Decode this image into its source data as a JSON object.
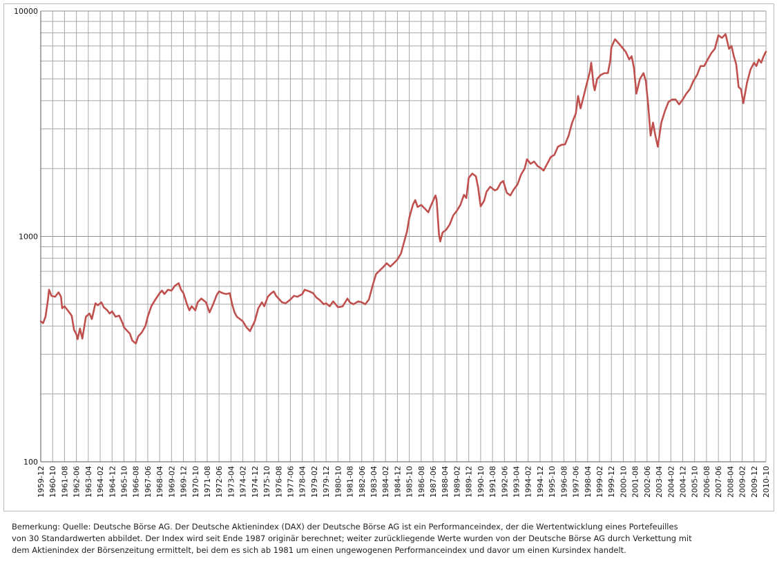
{
  "chart_data": {
    "type": "line",
    "title": "",
    "xlabel": "",
    "ylabel": "",
    "y_scale": "log",
    "ylim": [
      100,
      10000
    ],
    "y_major_ticks": [
      "100",
      "1000",
      "10000"
    ],
    "xlim": [
      "1959-12",
      "2010-10"
    ],
    "grid": true,
    "x_tick_labels": [
      "1959-12",
      "1960-10",
      "1961-08",
      "1962-06",
      "1963-04",
      "1964-02",
      "1964-12",
      "1965-10",
      "1966-08",
      "1967-06",
      "1968-04",
      "1969-02",
      "1969-12",
      "1970-10",
      "1971-08",
      "1972-06",
      "1973-04",
      "1974-02",
      "1974-12",
      "1975-10",
      "1976-08",
      "1977-06",
      "1978-04",
      "1979-02",
      "1979-12",
      "1980-10",
      "1981-08",
      "1982-06",
      "1983-04",
      "1984-02",
      "1984-12",
      "1985-10",
      "1986-08",
      "1987-06",
      "1988-04",
      "1989-02",
      "1989-12",
      "1990-10",
      "1991-08",
      "1992-06",
      "1993-04",
      "1994-02",
      "1994-12",
      "1995-10",
      "1996-08",
      "1997-06",
      "1998-04",
      "1999-02",
      "1999-12",
      "2000-10",
      "2001-08",
      "2002-06",
      "2003-04",
      "2004-02",
      "2004-12",
      "2005-10",
      "2006-08",
      "2007-06",
      "2008-04",
      "2009-02",
      "2009-12",
      "2010-10"
    ],
    "series": [
      {
        "color": "#c0504d",
        "points": [
          [
            "1959-12",
            420
          ],
          [
            "1960-02",
            412
          ],
          [
            "1960-04",
            440
          ],
          [
            "1960-06",
            520
          ],
          [
            "1960-07",
            580
          ],
          [
            "1960-09",
            545
          ],
          [
            "1960-12",
            540
          ],
          [
            "1961-03",
            565
          ],
          [
            "1961-05",
            540
          ],
          [
            "1961-06",
            480
          ],
          [
            "1961-08",
            490
          ],
          [
            "1961-10",
            475
          ],
          [
            "1962-02",
            445
          ],
          [
            "1962-04",
            385
          ],
          [
            "1962-06",
            368
          ],
          [
            "1962-07",
            350
          ],
          [
            "1962-09",
            390
          ],
          [
            "1962-11",
            352
          ],
          [
            "1963-02",
            440
          ],
          [
            "1963-05",
            455
          ],
          [
            "1963-07",
            430
          ],
          [
            "1963-10",
            505
          ],
          [
            "1963-12",
            495
          ],
          [
            "1964-03",
            510
          ],
          [
            "1964-05",
            485
          ],
          [
            "1964-08",
            470
          ],
          [
            "1964-10",
            455
          ],
          [
            "1964-12",
            465
          ],
          [
            "1965-03",
            440
          ],
          [
            "1965-06",
            445
          ],
          [
            "1965-09",
            410
          ],
          [
            "1965-10",
            395
          ],
          [
            "1966-03",
            370
          ],
          [
            "1966-05",
            345
          ],
          [
            "1966-08",
            335
          ],
          [
            "1966-10",
            360
          ],
          [
            "1967-01",
            375
          ],
          [
            "1967-04",
            400
          ],
          [
            "1967-06",
            440
          ],
          [
            "1967-09",
            490
          ],
          [
            "1967-12",
            520
          ],
          [
            "1968-02",
            540
          ],
          [
            "1968-04",
            560
          ],
          [
            "1968-06",
            575
          ],
          [
            "1968-08",
            555
          ],
          [
            "1968-11",
            580
          ],
          [
            "1969-02",
            575
          ],
          [
            "1969-05",
            605
          ],
          [
            "1969-08",
            620
          ],
          [
            "1969-10",
            580
          ],
          [
            "1969-12",
            560
          ],
          [
            "1970-03",
            500
          ],
          [
            "1970-05",
            470
          ],
          [
            "1970-07",
            490
          ],
          [
            "1970-10",
            470
          ],
          [
            "1970-12",
            510
          ],
          [
            "1971-03",
            530
          ],
          [
            "1971-05",
            520
          ],
          [
            "1971-07",
            510
          ],
          [
            "1971-10",
            460
          ],
          [
            "1972-01",
            500
          ],
          [
            "1972-04",
            550
          ],
          [
            "1972-06",
            570
          ],
          [
            "1972-09",
            560
          ],
          [
            "1972-12",
            555
          ],
          [
            "1973-03",
            560
          ],
          [
            "1973-05",
            500
          ],
          [
            "1973-07",
            460
          ],
          [
            "1973-09",
            440
          ],
          [
            "1974-02",
            420
          ],
          [
            "1974-05",
            395
          ],
          [
            "1974-08",
            380
          ],
          [
            "1974-10",
            400
          ],
          [
            "1974-12",
            420
          ],
          [
            "1975-03",
            480
          ],
          [
            "1975-06",
            510
          ],
          [
            "1975-08",
            490
          ],
          [
            "1975-11",
            540
          ],
          [
            "1976-02",
            560
          ],
          [
            "1976-04",
            570
          ],
          [
            "1976-06",
            545
          ],
          [
            "1976-08",
            530
          ],
          [
            "1976-11",
            510
          ],
          [
            "1977-02",
            505
          ],
          [
            "1977-06",
            525
          ],
          [
            "1977-09",
            545
          ],
          [
            "1977-12",
            540
          ],
          [
            "1978-04",
            555
          ],
          [
            "1978-06",
            580
          ],
          [
            "1978-10",
            570
          ],
          [
            "1979-01",
            560
          ],
          [
            "1979-04",
            535
          ],
          [
            "1979-07",
            520
          ],
          [
            "1979-10",
            500
          ],
          [
            "1979-12",
            505
          ],
          [
            "1980-03",
            490
          ],
          [
            "1980-06",
            515
          ],
          [
            "1980-10",
            485
          ],
          [
            "1981-02",
            490
          ],
          [
            "1981-06",
            530
          ],
          [
            "1981-08",
            510
          ],
          [
            "1981-11",
            500
          ],
          [
            "1982-03",
            515
          ],
          [
            "1982-06",
            510
          ],
          [
            "1982-09",
            500
          ],
          [
            "1982-12",
            525
          ],
          [
            "1983-03",
            600
          ],
          [
            "1983-06",
            680
          ],
          [
            "1983-09",
            705
          ],
          [
            "1983-12",
            730
          ],
          [
            "1984-03",
            760
          ],
          [
            "1984-06",
            735
          ],
          [
            "1984-09",
            760
          ],
          [
            "1984-12",
            790
          ],
          [
            "1985-03",
            840
          ],
          [
            "1985-06",
            960
          ],
          [
            "1985-08",
            1050
          ],
          [
            "1985-10",
            1210
          ],
          [
            "1986-01",
            1380
          ],
          [
            "1986-03",
            1450
          ],
          [
            "1986-05",
            1350
          ],
          [
            "1986-08",
            1380
          ],
          [
            "1986-11",
            1330
          ],
          [
            "1987-02",
            1280
          ],
          [
            "1987-05",
            1400
          ],
          [
            "1987-08",
            1520
          ],
          [
            "1987-09",
            1450
          ],
          [
            "1987-11",
            1020
          ],
          [
            "1987-12",
            950
          ],
          [
            "1988-02",
            1040
          ],
          [
            "1988-05",
            1070
          ],
          [
            "1988-08",
            1130
          ],
          [
            "1988-11",
            1240
          ],
          [
            "1989-02",
            1300
          ],
          [
            "1989-05",
            1380
          ],
          [
            "1989-08",
            1530
          ],
          [
            "1989-10",
            1480
          ],
          [
            "1989-12",
            1820
          ],
          [
            "1990-03",
            1900
          ],
          [
            "1990-06",
            1850
          ],
          [
            "1990-08",
            1640
          ],
          [
            "1990-10",
            1360
          ],
          [
            "1991-01",
            1440
          ],
          [
            "1991-03",
            1580
          ],
          [
            "1991-06",
            1660
          ],
          [
            "1991-10",
            1600
          ],
          [
            "1991-12",
            1620
          ],
          [
            "1992-03",
            1730
          ],
          [
            "1992-05",
            1760
          ],
          [
            "1992-08",
            1560
          ],
          [
            "1992-11",
            1520
          ],
          [
            "1993-02",
            1620
          ],
          [
            "1993-05",
            1700
          ],
          [
            "1993-08",
            1880
          ],
          [
            "1993-11",
            2000
          ],
          [
            "1994-01",
            2200
          ],
          [
            "1994-04",
            2100
          ],
          [
            "1994-07",
            2150
          ],
          [
            "1994-10",
            2050
          ],
          [
            "1994-12",
            2020
          ],
          [
            "1995-03",
            1960
          ],
          [
            "1995-06",
            2100
          ],
          [
            "1995-09",
            2250
          ],
          [
            "1995-12",
            2300
          ],
          [
            "1996-03",
            2500
          ],
          [
            "1996-06",
            2550
          ],
          [
            "1996-09",
            2560
          ],
          [
            "1996-12",
            2800
          ],
          [
            "1997-03",
            3200
          ],
          [
            "1997-06",
            3500
          ],
          [
            "1997-08",
            4200
          ],
          [
            "1997-10",
            3700
          ],
          [
            "1997-12",
            4050
          ],
          [
            "1998-03",
            4700
          ],
          [
            "1998-06",
            5400
          ],
          [
            "1998-07",
            5900
          ],
          [
            "1998-09",
            4700
          ],
          [
            "1998-10",
            4450
          ],
          [
            "1998-12",
            5000
          ],
          [
            "1999-03",
            5200
          ],
          [
            "1999-06",
            5300
          ],
          [
            "1999-09",
            5300
          ],
          [
            "1999-11",
            6000
          ],
          [
            "1999-12",
            6900
          ],
          [
            "2000-03",
            7500
          ],
          [
            "2000-06",
            7200
          ],
          [
            "2000-09",
            6900
          ],
          [
            "2000-12",
            6600
          ],
          [
            "2001-03",
            6100
          ],
          [
            "2001-05",
            6300
          ],
          [
            "2001-07",
            5600
          ],
          [
            "2001-09",
            4300
          ],
          [
            "2001-12",
            5000
          ],
          [
            "2002-03",
            5300
          ],
          [
            "2002-05",
            4900
          ],
          [
            "2002-07",
            3800
          ],
          [
            "2002-09",
            2800
          ],
          [
            "2002-11",
            3200
          ],
          [
            "2003-01",
            2800
          ],
          [
            "2003-03",
            2500
          ],
          [
            "2003-06",
            3200
          ],
          [
            "2003-09",
            3600
          ],
          [
            "2003-12",
            3950
          ],
          [
            "2004-03",
            4050
          ],
          [
            "2004-06",
            4050
          ],
          [
            "2004-09",
            3850
          ],
          [
            "2004-12",
            4050
          ],
          [
            "2005-03",
            4300
          ],
          [
            "2005-06",
            4500
          ],
          [
            "2005-09",
            4900
          ],
          [
            "2005-12",
            5200
          ],
          [
            "2006-03",
            5700
          ],
          [
            "2006-06",
            5700
          ],
          [
            "2006-09",
            6100
          ],
          [
            "2006-12",
            6500
          ],
          [
            "2007-03",
            6800
          ],
          [
            "2007-06",
            7800
          ],
          [
            "2007-09",
            7600
          ],
          [
            "2007-12",
            7900
          ],
          [
            "2008-03",
            6800
          ],
          [
            "2008-05",
            7000
          ],
          [
            "2008-07",
            6300
          ],
          [
            "2008-09",
            5800
          ],
          [
            "2008-11",
            4600
          ],
          [
            "2009-01",
            4500
          ],
          [
            "2009-03",
            3900
          ],
          [
            "2009-06",
            4800
          ],
          [
            "2009-09",
            5500
          ],
          [
            "2009-12",
            5900
          ],
          [
            "2010-02",
            5700
          ],
          [
            "2010-04",
            6100
          ],
          [
            "2010-06",
            5900
          ],
          [
            "2010-08",
            6300
          ],
          [
            "2010-10",
            6600
          ]
        ]
      }
    ]
  },
  "note": {
    "line1": "Bemerkung: Quelle: Deutsche Börse AG. Der Deutsche Aktienindex (DAX) der Deutsche Börse AG ist ein Performanceindex, der die Wertentwicklung eines Portefeuilles",
    "line2": "von 30 Standardwerten abbildet. Der Index wird seit Ende 1987 originär berechnet; weiter zurückliegende Werte wurden von der Deutsche Börse AG durch Verkettung mit",
    "line3": "dem Aktienindex der Börsenzeitung ermittelt, bei dem es sich ab 1981 um einen ungewogenen Performanceindex und davor um einen Kursindex handelt."
  }
}
